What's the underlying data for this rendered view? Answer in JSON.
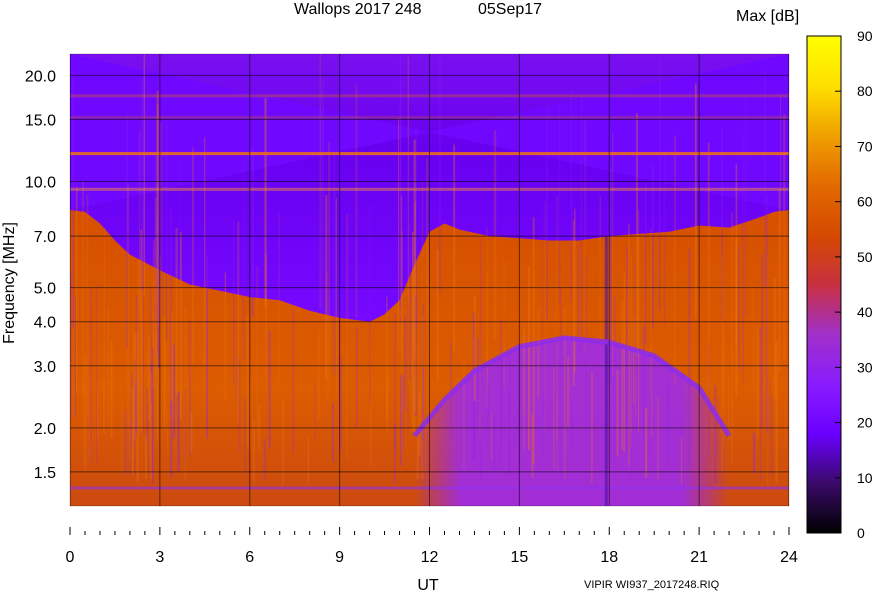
{
  "chart_data": {
    "type": "heatmap",
    "title": "Wallops 2017 248",
    "date_label": "05Sep17",
    "xlabel": "UT",
    "ylabel": "Frequency [MHz]",
    "xlim": [
      0,
      24
    ],
    "x_ticks": [
      0,
      3,
      6,
      9,
      12,
      15,
      18,
      21,
      24
    ],
    "ylim": [
      1.2,
      23
    ],
    "y_scale": "log",
    "y_ticks": [
      1.5,
      2.0,
      3.0,
      4.0,
      5.0,
      7.0,
      10.0,
      15.0,
      20.0
    ],
    "y_tick_labels": [
      "1.5",
      "2.0",
      "3.0",
      "4.0",
      "5.0",
      "7.0",
      "10.0",
      "15.0",
      "20.0"
    ],
    "grid": true,
    "colorbar": {
      "label": "Max [dB]",
      "range": [
        0,
        90
      ],
      "ticks": [
        0,
        10,
        20,
        30,
        40,
        50,
        60,
        70,
        80,
        90
      ],
      "colors": [
        "#000000",
        "#3a0a6a",
        "#6a00ff",
        "#8a1cff",
        "#a030c8",
        "#c83040",
        "#d44a00",
        "#e26a00",
        "#f0a000",
        "#ffe000",
        "#ffff00"
      ]
    },
    "cutoff_boundary": {
      "description_values": "approximate lower edge of the weak (purple) region, x in UT hours, y in MHz",
      "x": [
        0,
        0.5,
        1,
        1.5,
        2,
        3,
        4,
        5,
        6,
        7,
        8,
        9,
        10,
        10.5,
        11,
        11.5,
        12,
        12.5,
        13,
        14,
        15,
        16,
        17,
        18,
        19,
        20,
        21,
        22,
        23,
        23.5,
        24
      ],
      "y": [
        8.3,
        8.2,
        7.6,
        6.8,
        6.2,
        5.6,
        5.1,
        4.9,
        4.7,
        4.6,
        4.3,
        4.1,
        4.0,
        4.2,
        4.6,
        5.8,
        7.2,
        7.6,
        7.3,
        7.0,
        6.9,
        6.8,
        6.8,
        7.0,
        7.1,
        7.2,
        7.5,
        7.4,
        7.9,
        8.2,
        8.3
      ]
    },
    "trace_arc": {
      "description_values": "approximate ionospheric trace arc, x in UT hours, y in MHz",
      "x": [
        11.5,
        12.5,
        13.5,
        15,
        16.5,
        18,
        19.5,
        21,
        22
      ],
      "y": [
        1.9,
        2.4,
        2.9,
        3.4,
        3.6,
        3.5,
        3.2,
        2.6,
        1.9
      ]
    }
  },
  "footer": {
    "file_label": "VIPIR  WI937_2017248.RIQ"
  }
}
